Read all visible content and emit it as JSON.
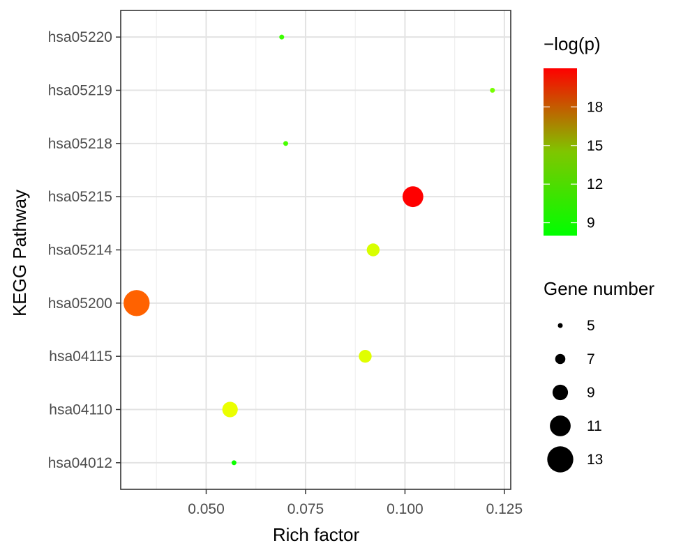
{
  "chart_data": {
    "type": "scatter",
    "xlabel": "Rich factor",
    "ylabel": "KEGG Pathway",
    "xlim": [
      0.0285,
      0.1266
    ],
    "x_ticks": [
      "0.050",
      "0.075",
      "0.100",
      "0.125"
    ],
    "x_tick_values": [
      0.05,
      0.075,
      0.1,
      0.125
    ],
    "categories": [
      "hsa04012",
      "hsa04110",
      "hsa04115",
      "hsa05200",
      "hsa05214",
      "hsa05215",
      "hsa05218",
      "hsa05219",
      "hsa05220"
    ],
    "grid": true,
    "points": [
      {
        "pathway": "hsa05220",
        "rich_factor": 0.069,
        "gene_number": 5,
        "neg_log_p": 9.5
      },
      {
        "pathway": "hsa05219",
        "rich_factor": 0.122,
        "gene_number": 5,
        "neg_log_p": 11.0
      },
      {
        "pathway": "hsa05218",
        "rich_factor": 0.07,
        "gene_number": 5,
        "neg_log_p": 9.8
      },
      {
        "pathway": "hsa05215",
        "rich_factor": 0.102,
        "gene_number": 11,
        "neg_log_p": 21.0
      },
      {
        "pathway": "hsa05214",
        "rich_factor": 0.092,
        "gene_number": 8,
        "neg_log_p": 13.5
      },
      {
        "pathway": "hsa05200",
        "rich_factor": 0.0325,
        "gene_number": 13,
        "neg_log_p": 18.5
      },
      {
        "pathway": "hsa04115",
        "rich_factor": 0.09,
        "gene_number": 8,
        "neg_log_p": 13.7
      },
      {
        "pathway": "hsa04110",
        "rich_factor": 0.056,
        "gene_number": 9,
        "neg_log_p": 14.0
      },
      {
        "pathway": "hsa04012",
        "rich_factor": 0.057,
        "gene_number": 5,
        "neg_log_p": 8.3
      }
    ],
    "color_legend": {
      "title": "−log(p)",
      "range": [
        8,
        21
      ],
      "ticks": [
        9,
        12,
        15,
        18
      ],
      "colors": [
        "#00ff00",
        "#ff0000"
      ]
    },
    "size_legend": {
      "title": "Gene number",
      "values": [
        5,
        7,
        9,
        11,
        13
      ]
    }
  }
}
